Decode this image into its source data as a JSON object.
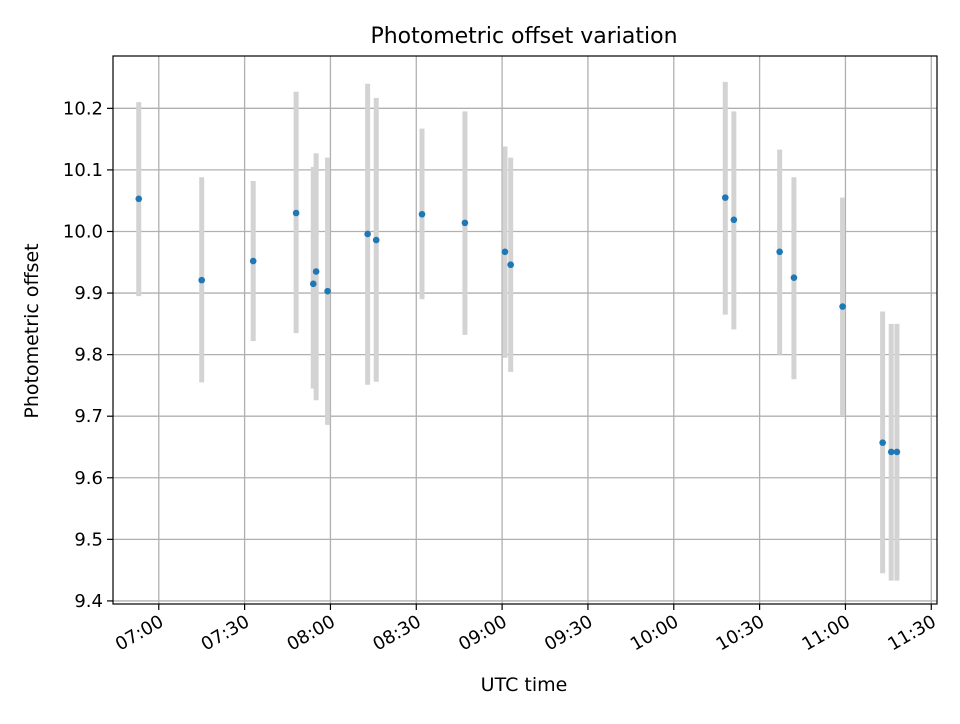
{
  "chart_data": {
    "type": "scatter",
    "title": "Photometric offset variation",
    "xlabel": "UTC time",
    "ylabel": "Photometric offset",
    "xlim": [
      "06:44",
      "11:32"
    ],
    "ylim": [
      9.395,
      10.285
    ],
    "x_ticks": [
      "07:00",
      "07:30",
      "08:00",
      "08:30",
      "09:00",
      "09:30",
      "10:00",
      "10:30",
      "11:00",
      "11:30"
    ],
    "y_ticks": [
      "9.4",
      "9.5",
      "9.6",
      "9.7",
      "9.8",
      "9.9",
      "10.0",
      "10.1",
      "10.2"
    ],
    "grid": true,
    "point_color": "#1f77b4",
    "errorbar_color": "#d3d3d3",
    "points": [
      {
        "x": "06:53",
        "y": 10.053,
        "low": 9.895,
        "high": 10.21
      },
      {
        "x": "07:15",
        "y": 9.921,
        "low": 9.755,
        "high": 10.088
      },
      {
        "x": "07:33",
        "y": 9.952,
        "low": 9.822,
        "high": 10.082
      },
      {
        "x": "07:48",
        "y": 10.03,
        "low": 9.835,
        "high": 10.227
      },
      {
        "x": "07:54",
        "y": 9.915,
        "low": 9.745,
        "high": 10.105
      },
      {
        "x": "07:55",
        "y": 9.935,
        "low": 9.726,
        "high": 10.127
      },
      {
        "x": "07:59",
        "y": 9.903,
        "low": 9.686,
        "high": 10.12
      },
      {
        "x": "08:13",
        "y": 9.996,
        "low": 9.751,
        "high": 10.24
      },
      {
        "x": "08:16",
        "y": 9.986,
        "low": 9.756,
        "high": 10.217
      },
      {
        "x": "08:32",
        "y": 10.028,
        "low": 9.89,
        "high": 10.167
      },
      {
        "x": "08:47",
        "y": 10.014,
        "low": 9.832,
        "high": 10.195
      },
      {
        "x": "09:01",
        "y": 9.967,
        "low": 9.795,
        "high": 10.138
      },
      {
        "x": "09:03",
        "y": 9.946,
        "low": 9.772,
        "high": 10.12
      },
      {
        "x": "10:18",
        "y": 10.055,
        "low": 9.865,
        "high": 10.243
      },
      {
        "x": "10:21",
        "y": 10.019,
        "low": 9.841,
        "high": 10.195
      },
      {
        "x": "10:37",
        "y": 9.967,
        "low": 9.8,
        "high": 10.133
      },
      {
        "x": "10:42",
        "y": 9.925,
        "low": 9.76,
        "high": 10.088
      },
      {
        "x": "10:59",
        "y": 9.878,
        "low": 9.7,
        "high": 10.055
      },
      {
        "x": "11:13",
        "y": 9.657,
        "low": 9.445,
        "high": 9.87
      },
      {
        "x": "11:16",
        "y": 9.642,
        "low": 9.433,
        "high": 9.85
      },
      {
        "x": "11:18",
        "y": 9.642,
        "low": 9.433,
        "high": 9.85
      }
    ]
  }
}
